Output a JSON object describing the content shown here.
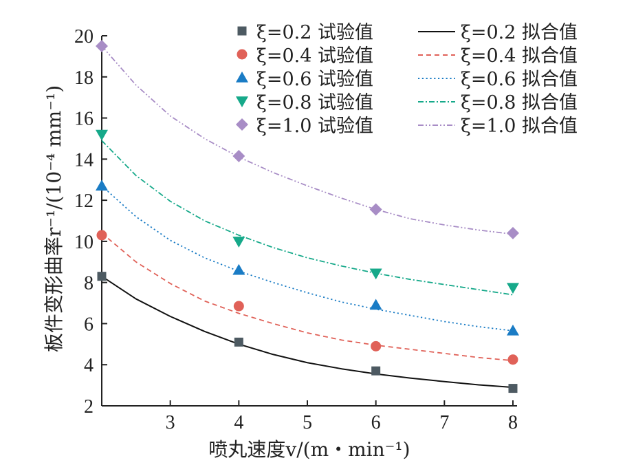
{
  "chart_data": {
    "type": "scatter",
    "xlabel": "喷丸速度v/(m・min⁻¹)",
    "ylabel": "板件变形曲率r⁻¹/(10⁻⁴ mm⁻¹)",
    "xlim": [
      2,
      8
    ],
    "ylim": [
      2,
      20
    ],
    "xticks": [
      "3",
      "4",
      "5",
      "6",
      "7",
      "8"
    ],
    "xtick_values": [
      3,
      4,
      5,
      6,
      7,
      8
    ],
    "yticks": [
      "2",
      "4",
      "6",
      "8",
      "10",
      "12",
      "14",
      "16",
      "18",
      "20"
    ],
    "ytick_values": [
      2,
      4,
      6,
      8,
      10,
      12,
      14,
      16,
      18,
      20
    ],
    "grid": false,
    "legend_position": "top-right",
    "x": [
      2,
      4,
      6,
      8
    ],
    "series": [
      {
        "name": "ξ=0.2 试验值",
        "kind": "measured",
        "marker": "square",
        "color": "#4d5a62",
        "values": [
          8.3,
          5.1,
          3.7,
          2.85
        ]
      },
      {
        "name": "ξ=0.4 试验值",
        "kind": "measured",
        "marker": "circle",
        "color": "#e06158",
        "values": [
          10.3,
          6.85,
          4.9,
          4.25
        ]
      },
      {
        "name": "ξ=0.6 试验值",
        "kind": "measured",
        "marker": "triangle-up",
        "color": "#1a7cc5",
        "values": [
          12.7,
          8.6,
          6.9,
          5.65
        ]
      },
      {
        "name": "ξ=0.8 试验值",
        "kind": "measured",
        "marker": "triangle-down",
        "color": "#16a98a",
        "values": [
          15.2,
          10.0,
          8.45,
          7.75
        ]
      },
      {
        "name": "ξ=1.0 试验值",
        "kind": "measured",
        "marker": "diamond",
        "color": "#a88dc6",
        "values": [
          19.5,
          14.15,
          11.55,
          10.4
        ]
      },
      {
        "name": "ξ=0.2 拟合值",
        "kind": "fit",
        "dash": "solid",
        "color": "#111111",
        "x": [
          2,
          2.5,
          3,
          3.5,
          4,
          4.5,
          5,
          5.5,
          6,
          6.5,
          7,
          7.5,
          8
        ],
        "values": [
          8.3,
          7.2,
          6.35,
          5.62,
          5.0,
          4.5,
          4.1,
          3.8,
          3.55,
          3.35,
          3.18,
          3.02,
          2.9
        ]
      },
      {
        "name": "ξ=0.4 拟合值",
        "kind": "fit",
        "dash": "dash",
        "color": "#e06158",
        "x": [
          2,
          2.5,
          3,
          3.5,
          4,
          4.5,
          5,
          5.5,
          6,
          6.5,
          7,
          7.5,
          8
        ],
        "values": [
          10.4,
          9.0,
          7.95,
          7.1,
          6.5,
          6.0,
          5.55,
          5.2,
          4.95,
          4.75,
          4.55,
          4.35,
          4.2
        ]
      },
      {
        "name": "ξ=0.6 拟合值",
        "kind": "fit",
        "dash": "dot",
        "color": "#1a7cc5",
        "x": [
          2,
          2.5,
          3,
          3.5,
          4,
          4.5,
          5,
          5.5,
          6,
          6.5,
          7,
          7.5,
          8
        ],
        "values": [
          12.7,
          11.2,
          10.05,
          9.2,
          8.55,
          8.0,
          7.5,
          7.05,
          6.7,
          6.4,
          6.1,
          5.85,
          5.65
        ]
      },
      {
        "name": "ξ=0.8 拟合值",
        "kind": "fit",
        "dash": "dashdot",
        "color": "#16a98a",
        "x": [
          2,
          2.5,
          3,
          3.5,
          4,
          4.5,
          5,
          5.5,
          6,
          6.5,
          7,
          7.5,
          8
        ],
        "values": [
          14.9,
          13.2,
          11.95,
          11.0,
          10.3,
          9.7,
          9.2,
          8.8,
          8.45,
          8.15,
          7.9,
          7.65,
          7.4
        ]
      },
      {
        "name": "ξ=1.0 拟合值",
        "kind": "fit",
        "dash": "dashdotdot",
        "color": "#a88dc6",
        "x": [
          2,
          2.5,
          3,
          3.5,
          4,
          4.5,
          5,
          5.5,
          6,
          6.5,
          7,
          7.5,
          8
        ],
        "values": [
          19.5,
          17.6,
          16.1,
          15.0,
          14.1,
          13.35,
          12.7,
          12.1,
          11.55,
          11.1,
          10.8,
          10.55,
          10.35
        ]
      }
    ]
  }
}
